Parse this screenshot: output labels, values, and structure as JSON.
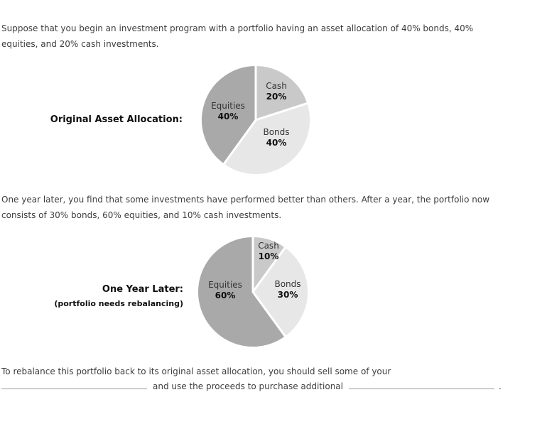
{
  "page": {
    "background": "#ffffff",
    "text_color": "#3d3d3d",
    "title_color": "#0f0f0f",
    "blank_underline_color": "#999999"
  },
  "intro_text": "Suppose that you begin an investment program with a portfolio having an asset allocation of 40% bonds, 40%\nequities, and 20% cash investments.",
  "middle_text": "One year later, you find that some investments have performed better than others. After a year, the portfolio now\nconsists of 30% bonds, 60% equities, and 10% cash investments.",
  "chart_data": [
    {
      "type": "pie",
      "title": "Original Asset Allocation:",
      "start_angle_deg": 0,
      "direction": "clockwise-from-12-oclock",
      "slices": [
        {
          "label": "Cash",
          "pct_label": "20%",
          "value": 20,
          "color": "#c9c9c9"
        },
        {
          "label": "Bonds",
          "pct_label": "40%",
          "value": 40,
          "color": "#e7e7e7"
        },
        {
          "label": "Equities",
          "pct_label": "40%",
          "value": 40,
          "color": "#a9a9a9"
        }
      ],
      "gap_color": "#ffffff"
    },
    {
      "type": "pie",
      "title": "One Year Later:",
      "subtitle": "(portfolio needs rebalancing)",
      "start_angle_deg": 0,
      "direction": "clockwise-from-12-oclock",
      "slices": [
        {
          "label": "Cash",
          "pct_label": "10%",
          "value": 10,
          "color": "#c9c9c9"
        },
        {
          "label": "Bonds",
          "pct_label": "30%",
          "value": 30,
          "color": "#e7e7e7"
        },
        {
          "label": "Equities",
          "pct_label": "60%",
          "value": 60,
          "color": "#a9a9a9"
        }
      ],
      "gap_color": "#ffffff"
    }
  ],
  "question": {
    "line1": "To rebalance this portfolio back to its original asset allocation, you should sell some of your",
    "middle": "and use the proceeds to purchase additional",
    "period": ".",
    "blank_sell_value": "",
    "blank_buy_value": ""
  }
}
